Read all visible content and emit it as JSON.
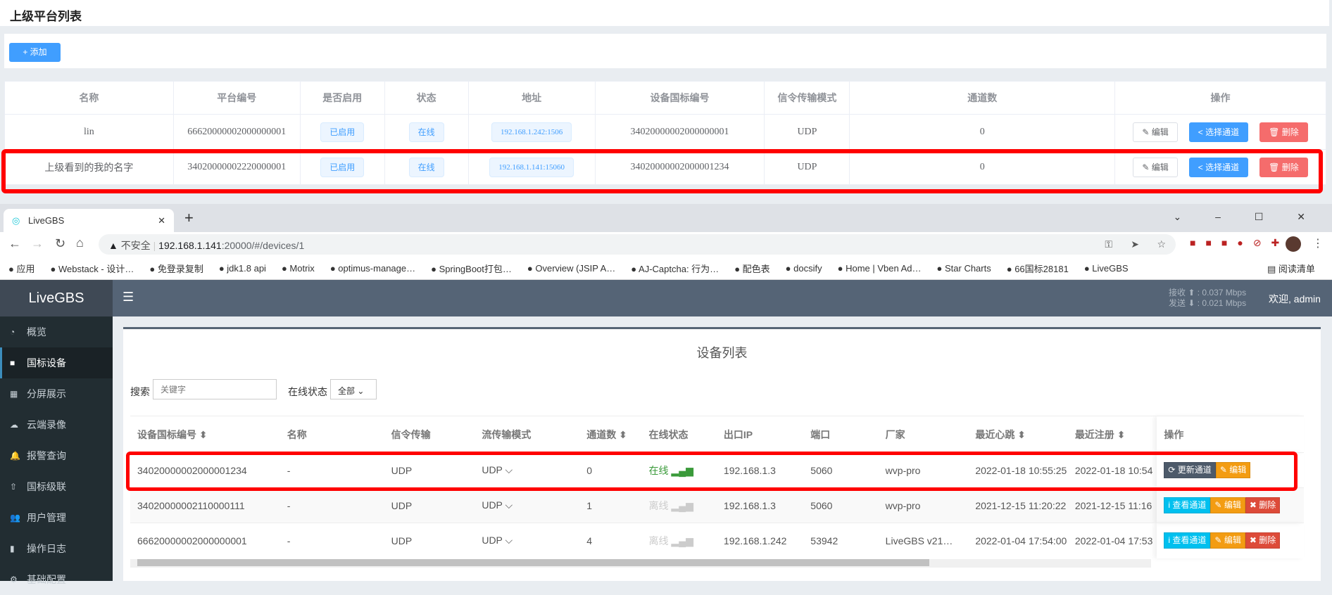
{
  "top": {
    "title": "上级平台列表",
    "add_label": "+ 添加",
    "columns": [
      "名称",
      "平台编号",
      "是否启用",
      "状态",
      "地址",
      "设备国标编号",
      "信令传输模式",
      "通道数",
      "操作"
    ],
    "rows": [
      {
        "name": "lin",
        "id": "66620000002000000001",
        "enabled": "已启用",
        "status": "在线",
        "addr": "192.168.1.242:1506",
        "dev": "34020000002000000001",
        "mode": "UDP",
        "channels": "0"
      },
      {
        "name": "上级看到的我的名字",
        "id": "34020000002220000001",
        "enabled": "已启用",
        "status": "在线",
        "addr": "192.168.1.141:15060",
        "dev": "34020000002000001234",
        "mode": "UDP",
        "channels": "0"
      }
    ],
    "edit": "编辑",
    "select": "选择通道",
    "delete": "删除"
  },
  "browser": {
    "tab_title": "LiveGBS",
    "url_warning": "不安全",
    "url_host": "192.168.1.141",
    "url_rest": ":20000/#/devices/1",
    "bookmarks": [
      "应用",
      "Webstack - 设计…",
      "免登录复制",
      "jdk1.8 api",
      "Motrix",
      "optimus-manage…",
      "SpringBoot打包…",
      "Overview (JSIP A…",
      "AJ-Captcha: 行为…",
      "配色表",
      "docsify",
      "Home | Vben Ad…",
      "Star Charts",
      "66国标28181",
      "LiveGBS"
    ],
    "reading_list": "阅读清单"
  },
  "app": {
    "logo": "LiveGBS",
    "recv": "接收 ⬆ : 0.037 Mbps",
    "send": "发送 ⬇ : 0.021 Mbps",
    "welcome": "欢迎, admin",
    "sidebar": [
      {
        "label": "概览",
        "icon": "dashboard"
      },
      {
        "label": "国标设备",
        "icon": "video-camera",
        "active": true
      },
      {
        "label": "分屏展示",
        "icon": "grid"
      },
      {
        "label": "云端录像",
        "icon": "cloud"
      },
      {
        "label": "报警查询",
        "icon": "bell"
      },
      {
        "label": "国标级联",
        "icon": "cloud-upload"
      },
      {
        "label": "用户管理",
        "icon": "users"
      },
      {
        "label": "操作日志",
        "icon": "file"
      },
      {
        "label": "基础配置",
        "icon": "gears"
      }
    ],
    "page_title": "设备列表",
    "search_label": "搜索",
    "search_placeholder": "关键字",
    "status_label": "在线状态",
    "status_value": "全部",
    "columns": [
      "设备国标编号 ⬍",
      "名称",
      "信令传输",
      "流传输模式",
      "通道数 ⬍",
      "在线状态",
      "出口IP",
      "端口",
      "厂家",
      "最近心跳 ⬍",
      "最近注册 ⬍",
      "操作"
    ],
    "rows": [
      {
        "id": "34020000002000001234",
        "name": "-",
        "sig": "UDP",
        "stream": "UDP ⌵",
        "ch": "0",
        "online": "在线",
        "ip": "192.168.1.3",
        "port": "5060",
        "vendor": "wvp-pro",
        "hb": "2022-01-18 10:55:25",
        "reg": "2022-01-18 10:54",
        "ops": [
          "更新通道",
          "编辑"
        ]
      },
      {
        "id": "34020000002110000111",
        "name": "-",
        "sig": "UDP",
        "stream": "UDP ⌵",
        "ch": "1",
        "online": "离线",
        "ip": "192.168.1.3",
        "port": "5060",
        "vendor": "wvp-pro",
        "hb": "2021-12-15 11:20:22",
        "reg": "2021-12-15 11:16",
        "ops": [
          "查看通道",
          "编辑",
          "删除"
        ]
      },
      {
        "id": "66620000002000000001",
        "name": "-",
        "sig": "UDP",
        "stream": "UDP ⌵",
        "ch": "4",
        "online": "离线",
        "ip": "192.168.1.242",
        "port": "53942",
        "vendor": "LiveGBS v21…",
        "hb": "2022-01-04 17:54:00",
        "reg": "2022-01-04 17:53",
        "ops": [
          "查看通道",
          "编辑",
          "删除"
        ]
      }
    ]
  },
  "colors": {
    "primary": "#409eff",
    "danger": "#f56c6c",
    "online": "#3a9a3a",
    "offline": "#cccccc",
    "highlight": "#ff0000"
  }
}
